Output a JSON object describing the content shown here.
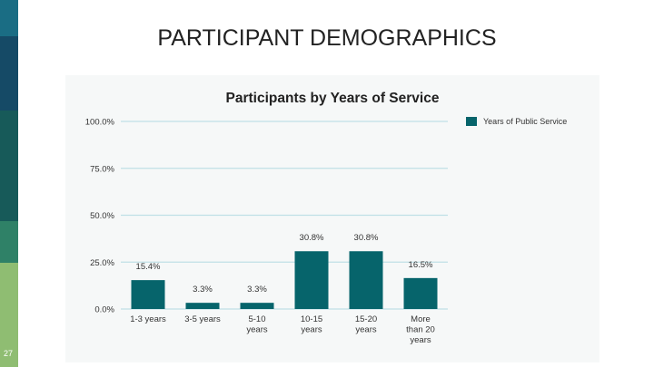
{
  "slide": {
    "title": "PARTICIPANT DEMOGRAPHICS",
    "page_number": "27",
    "stripe_colors": [
      "#1a6d84",
      "#154a66",
      "#175a59",
      "#2f8167",
      "#8fbd72"
    ]
  },
  "chart_data": {
    "type": "bar",
    "title": "Participants by Years of Service",
    "categories": [
      [
        "1-3 years"
      ],
      [
        "3-5 years"
      ],
      [
        "5-10",
        "years"
      ],
      [
        "10-15",
        "years"
      ],
      [
        "15-20",
        "years"
      ],
      [
        "More",
        "than 20",
        "years"
      ]
    ],
    "values": [
      15.4,
      3.3,
      3.3,
      30.8,
      30.8,
      16.5
    ],
    "value_labels": [
      "15.4%",
      "3.3%",
      "3.3%",
      "30.8%",
      "30.8%",
      "16.5%"
    ],
    "series_name": "Years of Public Service",
    "ylim": [
      0,
      100
    ],
    "yticks": [
      0,
      25,
      50,
      75,
      100
    ],
    "ytick_labels": [
      "0.0%",
      "25.0%",
      "50.0%",
      "75.0%",
      "100.0%"
    ],
    "legend_position": "top-right",
    "grid": true,
    "bar_color": "#06646b",
    "grid_color": "#bfe0e6"
  }
}
